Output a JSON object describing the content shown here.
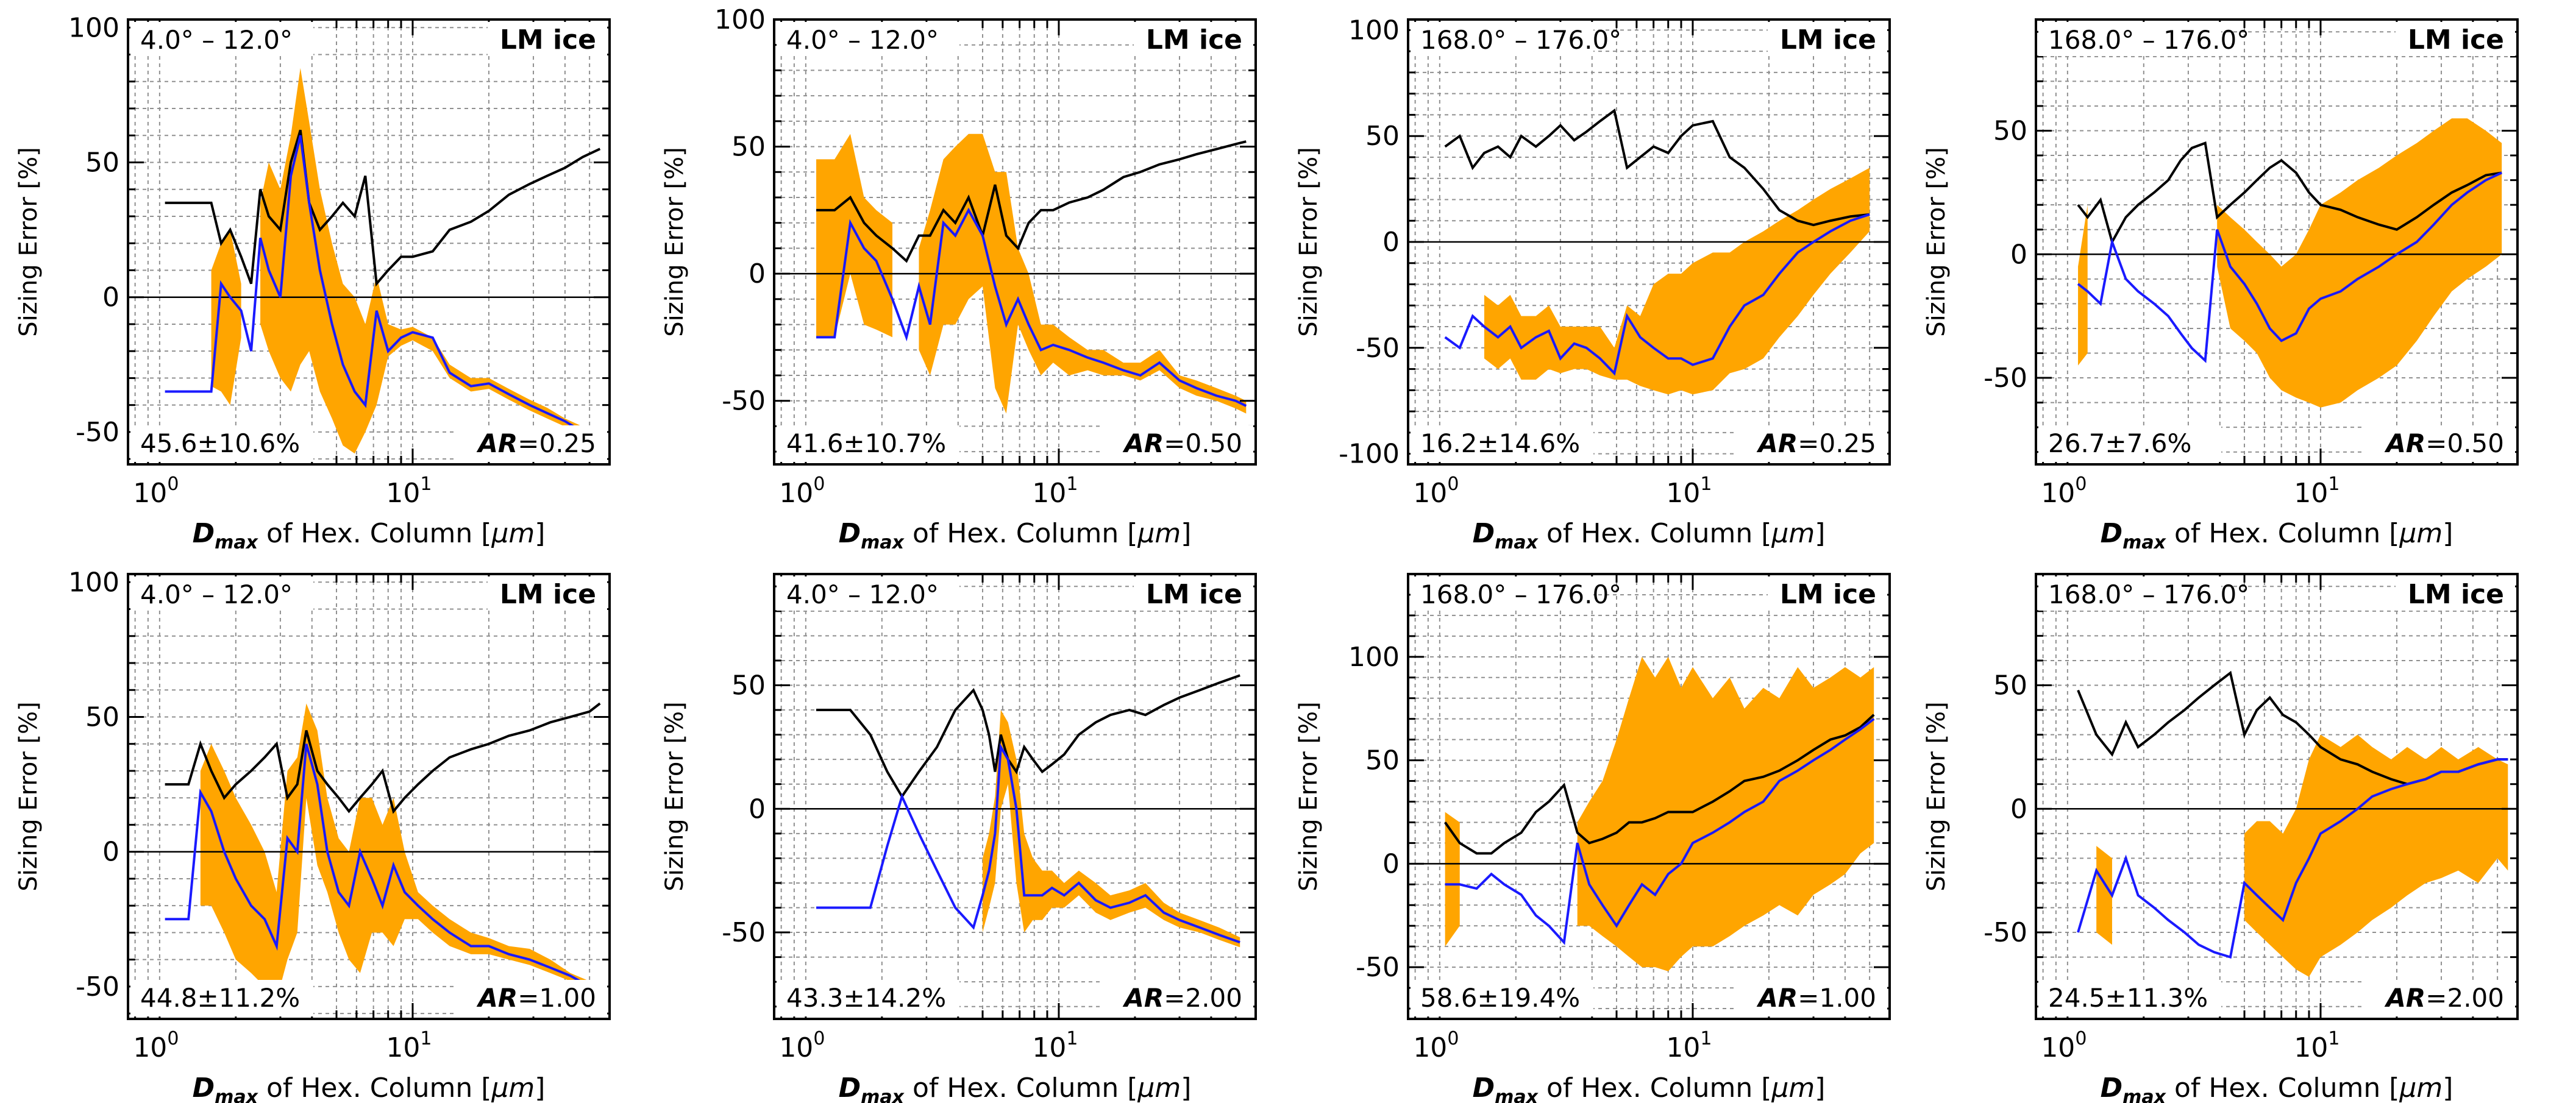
{
  "colors": {
    "band": "#ffa500",
    "mean_line": "#1a1aff",
    "spread_line": "#000000",
    "grid": "#909090",
    "zero_line": "#000000"
  },
  "shared": {
    "ylabel": "Sizing Error [%]",
    "xlabel_sym": "D",
    "xlabel_sub": "max",
    "xlabel_rest": " of Hex. Column [",
    "xlabel_mu": "μm",
    "xlabel_end": "]",
    "material": "LM ice",
    "ar_prefix": "AR"
  },
  "chart_data": [
    {
      "type": "area",
      "row": 0,
      "col": 0,
      "angle": "4.0° – 12.0°",
      "stat": "45.6±10.6%",
      "ar_value": "=0.25",
      "ylim": [
        -62,
        103
      ],
      "yticks": [
        -50,
        0,
        50,
        100
      ],
      "xlog": true,
      "xlim": [
        0.75,
        60
      ],
      "xticks": [
        "10^0",
        "10^1"
      ],
      "x": [
        1.05,
        1.3,
        1.6,
        1.75,
        1.9,
        2.1,
        2.3,
        2.5,
        2.7,
        3.0,
        3.3,
        3.6,
        3.9,
        4.3,
        4.8,
        5.3,
        5.9,
        6.5,
        7.2,
        8.0,
        9.0,
        10,
        12,
        14,
        17,
        20,
        24,
        29,
        34,
        40,
        47,
        55
      ],
      "lower": [
        null,
        null,
        -33,
        -35,
        -40,
        -15,
        null,
        -10,
        -20,
        -30,
        -35,
        -25,
        -20,
        -35,
        -45,
        -55,
        -58,
        -50,
        -40,
        -22,
        -18,
        -16,
        -20,
        -30,
        -35,
        -34,
        -38,
        -42,
        -45,
        -48,
        -52,
        -55
      ],
      "upper": [
        null,
        null,
        10,
        20,
        25,
        5,
        null,
        35,
        50,
        40,
        60,
        85,
        65,
        40,
        20,
        5,
        0,
        -10,
        8,
        -10,
        -12,
        -11,
        -15,
        -25,
        -30,
        -30,
        -34,
        -38,
        -41,
        -45,
        -48,
        -50
      ],
      "mean": [
        -35,
        -35,
        -35,
        5,
        0,
        -5,
        -20,
        22,
        10,
        0,
        45,
        60,
        35,
        10,
        -10,
        -25,
        -35,
        -40,
        -5,
        -20,
        -15,
        -13,
        -15,
        -28,
        -33,
        -32,
        -36,
        -40,
        -43,
        -46,
        -50,
        -53
      ],
      "spread": [
        35,
        35,
        35,
        20,
        25,
        15,
        5,
        40,
        30,
        25,
        50,
        62,
        35,
        25,
        30,
        35,
        30,
        45,
        5,
        10,
        15,
        15,
        17,
        25,
        28,
        32,
        38,
        42,
        45,
        48,
        52,
        55
      ]
    },
    {
      "type": "area",
      "row": 0,
      "col": 1,
      "angle": "4.0° – 12.0°",
      "stat": "41.6±10.7%",
      "ar_value": "=0.50",
      "ylim": [
        -75,
        100
      ],
      "yticks": [
        -50,
        0,
        50,
        100
      ],
      "xlog": true,
      "xlim": [
        0.75,
        60
      ],
      "xticks": [
        "10^0",
        "10^1"
      ],
      "x": [
        1.1,
        1.3,
        1.5,
        1.7,
        1.9,
        2.2,
        2.5,
        2.8,
        3.1,
        3.5,
        3.9,
        4.4,
        5.0,
        5.6,
        6.2,
        6.9,
        7.6,
        8.5,
        9.5,
        11,
        13,
        15,
        18,
        21,
        25,
        30,
        35,
        42,
        50,
        55
      ],
      "lower": [
        -25,
        -25,
        0,
        -20,
        -22,
        -25,
        null,
        -30,
        -40,
        -20,
        -20,
        -10,
        -5,
        -45,
        -55,
        -20,
        -30,
        -40,
        -35,
        -40,
        -38,
        -40,
        -40,
        -42,
        -38,
        -45,
        -48,
        -50,
        -53,
        -55
      ],
      "upper": [
        45,
        45,
        55,
        30,
        25,
        20,
        null,
        10,
        25,
        45,
        50,
        55,
        55,
        40,
        40,
        10,
        0,
        -20,
        -20,
        -25,
        -30,
        -30,
        -35,
        -35,
        -30,
        -40,
        -42,
        -45,
        -48,
        -50
      ],
      "mean": [
        -25,
        -25,
        20,
        10,
        5,
        -10,
        -25,
        -5,
        -20,
        20,
        15,
        25,
        15,
        -5,
        -20,
        -10,
        -20,
        -30,
        -28,
        -30,
        -33,
        -35,
        -38,
        -40,
        -35,
        -42,
        -45,
        -48,
        -50,
        -52
      ],
      "spread": [
        25,
        25,
        30,
        20,
        15,
        10,
        5,
        15,
        15,
        25,
        20,
        30,
        15,
        35,
        15,
        10,
        20,
        25,
        25,
        28,
        30,
        33,
        38,
        40,
        43,
        45,
        47,
        49,
        51,
        52
      ]
    },
    {
      "type": "area",
      "row": 0,
      "col": 2,
      "angle": "168.0° – 176.0°",
      "stat": "16.2±14.6%",
      "ar_value": "=0.25",
      "ylim": [
        -105,
        105
      ],
      "yticks": [
        -100,
        -50,
        0,
        50,
        100
      ],
      "xlog": true,
      "xlim": [
        0.75,
        60
      ],
      "xticks": [
        "10^0",
        "10^1"
      ],
      "x": [
        1.05,
        1.2,
        1.35,
        1.5,
        1.7,
        1.9,
        2.1,
        2.4,
        2.7,
        3.0,
        3.4,
        3.8,
        4.3,
        4.9,
        5.5,
        6.2,
        7.0,
        8.0,
        9.0,
        10,
        12,
        14,
        16,
        19,
        22,
        26,
        30,
        35,
        42,
        50
      ],
      "lower": [
        null,
        null,
        null,
        -55,
        -60,
        -55,
        -65,
        -65,
        -60,
        -62,
        -60,
        -60,
        -63,
        -65,
        -65,
        -68,
        -70,
        -72,
        -70,
        -72,
        -70,
        -62,
        -60,
        -55,
        -45,
        -35,
        -25,
        -15,
        -5,
        5
      ],
      "upper": [
        null,
        null,
        null,
        -25,
        -30,
        -25,
        -35,
        -35,
        -30,
        -40,
        -40,
        -40,
        -40,
        -50,
        -30,
        -35,
        -20,
        -15,
        -15,
        -10,
        -5,
        -5,
        0,
        5,
        10,
        15,
        20,
        25,
        30,
        35
      ],
      "mean": [
        -45,
        -50,
        -35,
        -40,
        -45,
        -40,
        -50,
        -45,
        -42,
        -55,
        -48,
        -50,
        -55,
        -62,
        -35,
        -45,
        -50,
        -55,
        -55,
        -58,
        -55,
        -40,
        -30,
        -25,
        -15,
        -5,
        0,
        5,
        10,
        13
      ],
      "spread": [
        45,
        50,
        35,
        42,
        45,
        40,
        50,
        45,
        50,
        55,
        48,
        52,
        57,
        62,
        35,
        40,
        45,
        42,
        50,
        55,
        57,
        40,
        35,
        25,
        15,
        10,
        8,
        10,
        12,
        13
      ]
    },
    {
      "type": "area",
      "row": 0,
      "col": 3,
      "angle": "168.0° – 176.0°",
      "stat": "26.7±7.6%",
      "ar_value": "=0.50",
      "ylim": [
        -85,
        95
      ],
      "yticks": [
        -50,
        0,
        50
      ],
      "xlog": true,
      "xlim": [
        0.75,
        60
      ],
      "xticks": [
        "10^0",
        "10^1"
      ],
      "x": [
        1.1,
        1.2,
        1.35,
        1.5,
        1.7,
        1.9,
        2.2,
        2.5,
        2.8,
        3.1,
        3.5,
        3.9,
        4.4,
        5.0,
        5.6,
        6.3,
        7.0,
        8.0,
        9.0,
        10,
        12,
        14,
        17,
        20,
        24,
        28,
        33,
        38,
        45,
        52
      ],
      "lower": [
        -45,
        -40,
        null,
        null,
        null,
        null,
        null,
        null,
        null,
        null,
        null,
        -5,
        -30,
        -35,
        -40,
        -50,
        -55,
        -58,
        -60,
        -62,
        -60,
        -55,
        -50,
        -45,
        -35,
        -25,
        -15,
        -10,
        -5,
        0
      ],
      "upper": [
        -5,
        20,
        null,
        null,
        null,
        null,
        null,
        null,
        null,
        null,
        null,
        20,
        15,
        10,
        5,
        0,
        -5,
        0,
        10,
        20,
        25,
        30,
        35,
        40,
        45,
        50,
        55,
        55,
        50,
        45
      ],
      "mean": [
        -12,
        -15,
        -20,
        5,
        -10,
        -15,
        -20,
        -25,
        -32,
        -38,
        -43,
        10,
        -5,
        -12,
        -20,
        -30,
        -35,
        -32,
        -22,
        -18,
        -15,
        -10,
        -5,
        0,
        5,
        12,
        20,
        25,
        30,
        33
      ],
      "spread": [
        20,
        15,
        22,
        5,
        15,
        20,
        25,
        30,
        38,
        43,
        45,
        15,
        20,
        25,
        30,
        35,
        38,
        33,
        25,
        20,
        18,
        15,
        12,
        10,
        15,
        20,
        25,
        28,
        32,
        33
      ]
    },
    {
      "type": "area",
      "row": 1,
      "col": 0,
      "angle": "4.0° – 12.0°",
      "stat": "44.8±11.2%",
      "ar_value": "=1.00",
      "ylim": [
        -62,
        103
      ],
      "yticks": [
        -50,
        0,
        50,
        100
      ],
      "xlog": true,
      "xlim": [
        0.75,
        60
      ],
      "xticks": [
        "10^0",
        "10^1"
      ],
      "x": [
        1.05,
        1.3,
        1.45,
        1.6,
        1.8,
        2.0,
        2.3,
        2.6,
        2.9,
        3.2,
        3.5,
        3.8,
        4.2,
        4.6,
        5.1,
        5.6,
        6.2,
        6.9,
        7.6,
        8.4,
        9.3,
        10.5,
        12,
        14,
        17,
        20,
        24,
        29,
        35,
        42,
        50,
        55
      ],
      "lower": [
        null,
        null,
        -20,
        -20,
        -30,
        -40,
        -45,
        -50,
        -55,
        -40,
        -30,
        20,
        -5,
        -15,
        -30,
        -40,
        -45,
        -30,
        -30,
        -35,
        -25,
        -25,
        -30,
        -35,
        -38,
        -38,
        -40,
        -42,
        -45,
        -48,
        -52,
        -55
      ],
      "upper": [
        null,
        null,
        30,
        40,
        30,
        20,
        10,
        0,
        -15,
        30,
        35,
        55,
        45,
        20,
        5,
        0,
        20,
        20,
        10,
        20,
        0,
        -15,
        -20,
        -25,
        -30,
        -32,
        -35,
        -36,
        -40,
        -45,
        -48,
        -52
      ],
      "mean": [
        -25,
        -25,
        22,
        15,
        0,
        -10,
        -20,
        -25,
        -35,
        5,
        0,
        40,
        25,
        0,
        -15,
        -20,
        0,
        -10,
        -20,
        -5,
        -15,
        -20,
        -25,
        -30,
        -35,
        -35,
        -38,
        -40,
        -43,
        -46,
        -50,
        -53
      ],
      "spread": [
        25,
        25,
        40,
        30,
        20,
        25,
        30,
        35,
        40,
        20,
        25,
        45,
        30,
        25,
        20,
        15,
        20,
        25,
        30,
        15,
        20,
        25,
        30,
        35,
        38,
        40,
        43,
        45,
        48,
        50,
        52,
        55
      ]
    },
    {
      "type": "area",
      "row": 1,
      "col": 1,
      "angle": "4.0° – 12.0°",
      "stat": "43.3±14.2%",
      "ar_value": "=2.00",
      "ylim": [
        -85,
        95
      ],
      "yticks": [
        -50,
        0,
        50
      ],
      "xlog": true,
      "xlim": [
        0.75,
        60
      ],
      "xticks": [
        "10^0",
        "10^1"
      ],
      "x": [
        1.1,
        1.5,
        1.8,
        2.1,
        2.4,
        2.8,
        3.3,
        3.9,
        4.6,
        5.0,
        5.3,
        5.6,
        5.9,
        6.3,
        6.8,
        7.3,
        7.9,
        8.6,
        9.4,
        10.5,
        12,
        14,
        16,
        19,
        22,
        26,
        30,
        36,
        43,
        52
      ],
      "lower": [
        null,
        null,
        null,
        null,
        null,
        null,
        null,
        null,
        null,
        -50,
        -40,
        -30,
        0,
        10,
        -30,
        -50,
        -45,
        -45,
        -40,
        -40,
        -35,
        -42,
        -45,
        -42,
        -40,
        -45,
        -48,
        -50,
        -53,
        -56
      ],
      "upper": [
        null,
        null,
        null,
        null,
        null,
        null,
        null,
        null,
        null,
        -20,
        -10,
        5,
        40,
        35,
        20,
        -10,
        -20,
        -25,
        -25,
        -30,
        -25,
        -30,
        -35,
        -33,
        -30,
        -38,
        -42,
        -45,
        -48,
        -52
      ],
      "mean": [
        -40,
        -40,
        -40,
        -15,
        5,
        -10,
        -25,
        -40,
        -48,
        -35,
        -25,
        -10,
        25,
        20,
        0,
        -35,
        -35,
        -35,
        -32,
        -35,
        -30,
        -37,
        -40,
        -38,
        -35,
        -42,
        -45,
        -48,
        -51,
        -54
      ],
      "spread": [
        40,
        40,
        30,
        15,
        5,
        15,
        25,
        40,
        48,
        40,
        30,
        15,
        30,
        20,
        15,
        25,
        20,
        15,
        18,
        22,
        30,
        35,
        38,
        40,
        38,
        42,
        45,
        48,
        51,
        54
      ]
    },
    {
      "type": "area",
      "row": 1,
      "col": 2,
      "angle": "168.0° – 176.0°",
      "stat": "58.6±19.4%",
      "ar_value": "=1.00",
      "ylim": [
        -75,
        140
      ],
      "yticks": [
        -50,
        0,
        50,
        100
      ],
      "xlog": true,
      "xlim": [
        0.75,
        60
      ],
      "xticks": [
        "10^0",
        "10^1"
      ],
      "x": [
        1.05,
        1.2,
        1.4,
        1.6,
        1.8,
        2.1,
        2.4,
        2.7,
        3.1,
        3.5,
        3.9,
        4.4,
        5.0,
        5.6,
        6.3,
        7.1,
        8.0,
        9.0,
        10,
        12,
        14,
        16,
        19,
        22,
        26,
        30,
        35,
        40,
        46,
        52
      ],
      "lower": [
        -40,
        -30,
        null,
        null,
        null,
        null,
        null,
        null,
        null,
        -30,
        -30,
        -35,
        -40,
        -45,
        -50,
        -50,
        -52,
        -45,
        -40,
        -40,
        -35,
        -30,
        -25,
        -20,
        -25,
        -15,
        -10,
        -5,
        5,
        10
      ],
      "upper": [
        25,
        20,
        null,
        null,
        null,
        null,
        null,
        null,
        null,
        20,
        30,
        40,
        60,
        80,
        100,
        90,
        100,
        85,
        95,
        80,
        90,
        75,
        85,
        80,
        95,
        85,
        90,
        95,
        90,
        95
      ],
      "mean": [
        -10,
        -10,
        -12,
        -5,
        -10,
        -15,
        -25,
        -30,
        -38,
        10,
        -10,
        -20,
        -30,
        -20,
        -10,
        -15,
        -5,
        0,
        10,
        15,
        20,
        25,
        30,
        40,
        45,
        50,
        55,
        60,
        65,
        70
      ],
      "spread": [
        20,
        10,
        5,
        5,
        10,
        15,
        25,
        30,
        38,
        15,
        10,
        12,
        15,
        20,
        20,
        22,
        25,
        25,
        25,
        30,
        35,
        40,
        42,
        45,
        50,
        55,
        60,
        62,
        66,
        72
      ]
    },
    {
      "type": "area",
      "row": 1,
      "col": 3,
      "angle": "168.0° – 176.0°",
      "stat": "24.5±11.3%",
      "ar_value": "=2.00",
      "ylim": [
        -85,
        95
      ],
      "yticks": [
        -50,
        0,
        50
      ],
      "xlog": true,
      "xlim": [
        0.75,
        60
      ],
      "xticks": [
        "10^0",
        "10^1"
      ],
      "x": [
        1.1,
        1.3,
        1.5,
        1.7,
        1.9,
        2.2,
        2.5,
        2.9,
        3.3,
        3.8,
        4.4,
        5.0,
        5.6,
        6.3,
        7.1,
        8.0,
        9.0,
        10,
        12,
        14,
        16,
        19,
        22,
        26,
        30,
        35,
        42,
        50,
        55
      ],
      "lower": [
        null,
        -50,
        -55,
        null,
        null,
        null,
        null,
        null,
        null,
        null,
        null,
        -45,
        -50,
        -55,
        -60,
        -65,
        -68,
        -60,
        -55,
        -50,
        -45,
        -40,
        -35,
        -30,
        -28,
        -25,
        -30,
        -20,
        -25
      ],
      "upper": [
        null,
        -15,
        -20,
        null,
        null,
        null,
        null,
        null,
        null,
        null,
        null,
        -10,
        -5,
        -5,
        -10,
        0,
        20,
        30,
        25,
        30,
        25,
        20,
        25,
        20,
        25,
        20,
        25,
        20,
        18
      ],
      "mean": [
        -50,
        -25,
        -35,
        -20,
        -35,
        -40,
        -45,
        -50,
        -55,
        -58,
        -60,
        -30,
        -35,
        -40,
        -45,
        -30,
        -20,
        -10,
        -5,
        0,
        5,
        8,
        10,
        12,
        15,
        15,
        18,
        20,
        20
      ],
      "spread": [
        48,
        30,
        22,
        35,
        25,
        30,
        35,
        40,
        45,
        50,
        55,
        30,
        40,
        45,
        38,
        35,
        30,
        25,
        20,
        18,
        15,
        12,
        10,
        12,
        15,
        15,
        18,
        20,
        20
      ]
    }
  ]
}
